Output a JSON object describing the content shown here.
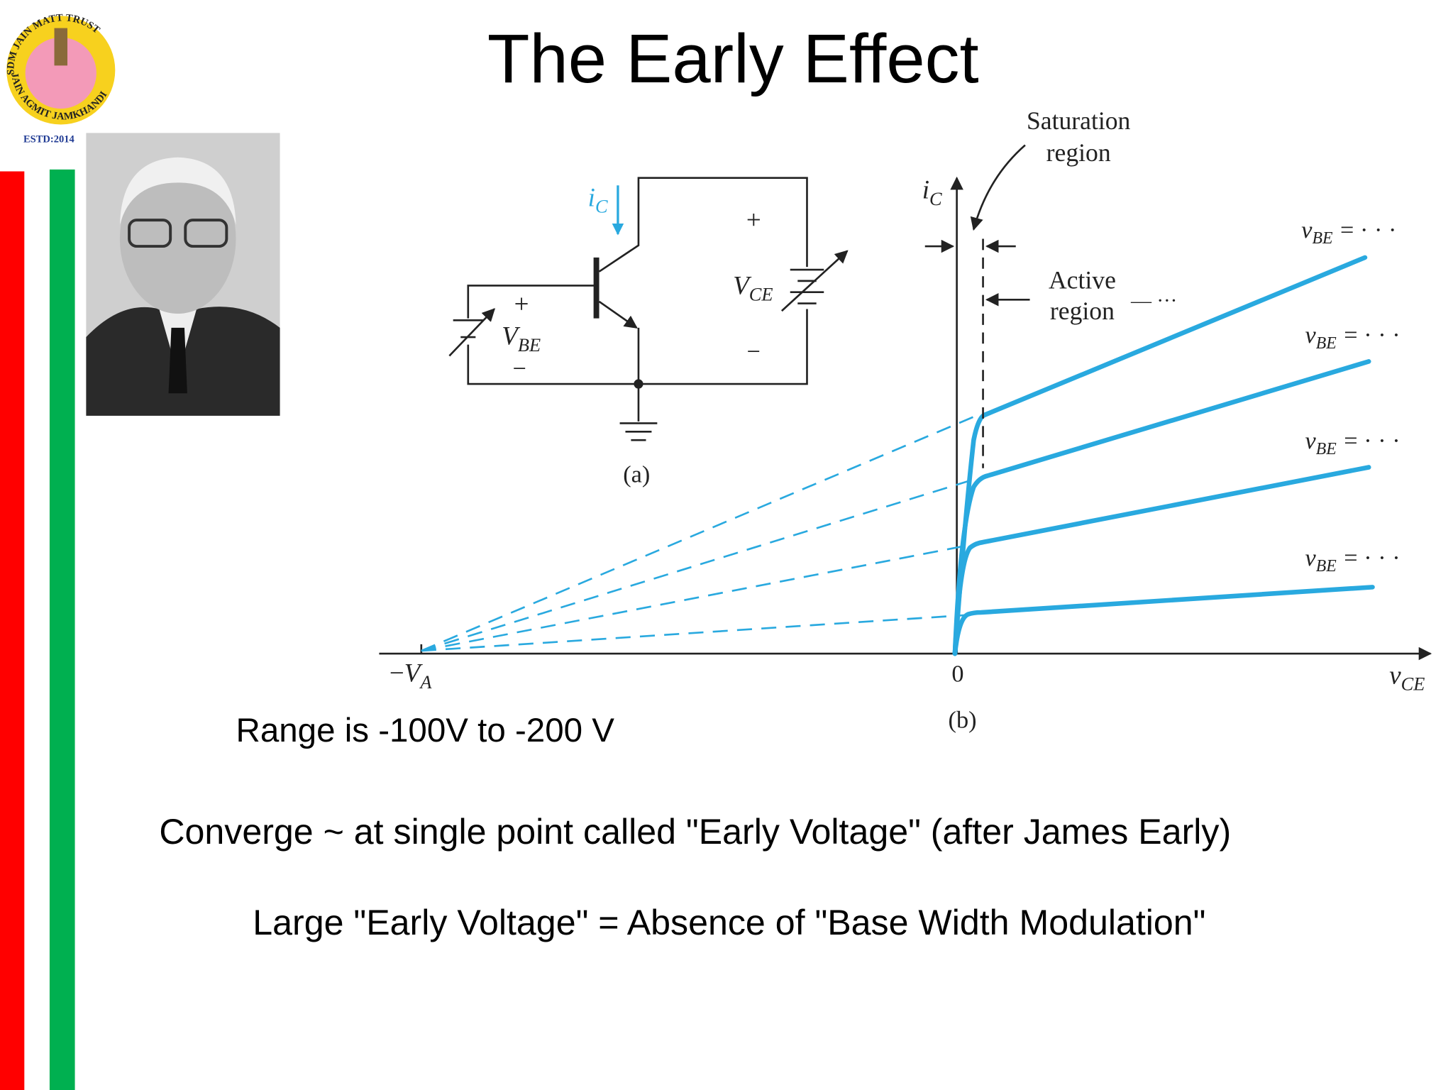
{
  "header": {
    "title": "The Early Effect"
  },
  "logo": {
    "top_text": "SDM JAIN MATT TRUST",
    "bottom_text": "JAIN AGMIT JAMKHANDI",
    "established": "ESTD:2014"
  },
  "circuit": {
    "current": {
      "symbol": "i",
      "subscript": "C"
    },
    "vce": {
      "symbol": "V",
      "subscript": "CE"
    },
    "vce_plus": "+",
    "vce_minus": "−",
    "vbe": {
      "symbol": "V",
      "subscript": "BE"
    },
    "vbe_plus": "+",
    "vbe_minus": "−",
    "caption": "(a)"
  },
  "graph": {
    "y_axis": {
      "symbol": "i",
      "subscript": "C"
    },
    "x_axis": {
      "symbol": "v",
      "subscript": "CE"
    },
    "origin": "0",
    "early_voltage": {
      "sign": "−",
      "symbol": "V",
      "subscript": "A"
    },
    "saturation_label": [
      "Saturation",
      "region"
    ],
    "active_label": [
      "Active",
      "region"
    ],
    "active_trail": "— ···",
    "curve_labels": [
      {
        "symbol": "v",
        "subscript": "BE",
        "suffix": "= · · ·"
      },
      {
        "symbol": "v",
        "subscript": "BE",
        "suffix": "= · · ·"
      },
      {
        "symbol": "v",
        "subscript": "BE",
        "suffix": "= · · ·"
      },
      {
        "symbol": "v",
        "subscript": "BE",
        "suffix": "= · · ·"
      }
    ],
    "caption": "(b)"
  },
  "notes": [
    "Range is -100V to -200 V",
    "Converge ~ at single point called \"Early Voltage\" (after James Early)",
    "Large \"Early Voltage\" = Absence of \"Base Width Modulation\""
  ]
}
